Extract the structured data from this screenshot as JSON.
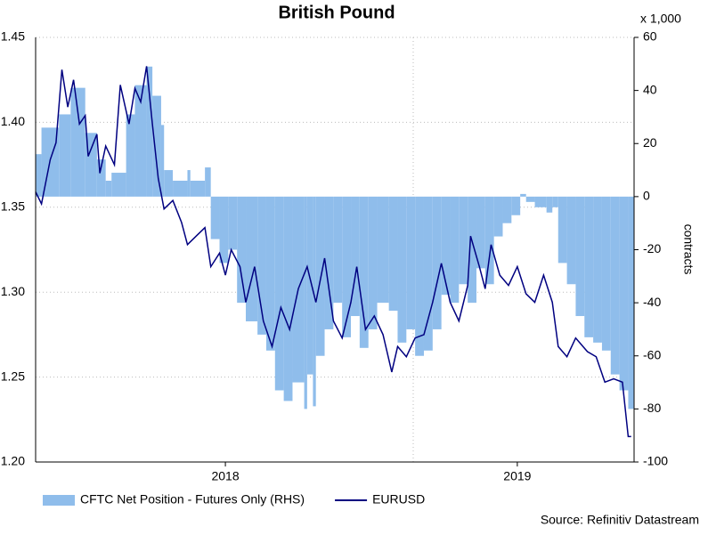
{
  "chart_data": {
    "type": "line",
    "title": "British Pound",
    "y2_label": "contracts",
    "y2_unit_label": "x 1,000",
    "source": "Source: Refinitiv Datastream",
    "xlim": [
      2017.35,
      2019.4
    ],
    "xticks": [
      2018,
      2019
    ],
    "ylim": [
      1.2,
      1.45
    ],
    "yticks": [
      {
        "value": 1.2,
        "label": "1.20"
      },
      1.25,
      {
        "value": 1.3,
        "label": "1.30"
      },
      1.35,
      {
        "value": 1.4,
        "label": "1.40"
      },
      1.45
    ],
    "y2lim": [
      -100,
      60
    ],
    "y2ticks": [
      -100,
      -80,
      -60,
      -40,
      -20,
      0,
      20,
      40,
      60
    ],
    "grid": true,
    "series": [
      {
        "name": "CFTC Net Position - Futures Only (RHS)",
        "type": "area",
        "axis": "y2",
        "color": "#8fbdeb",
        "x": [
          2017.35,
          2017.37,
          2017.43,
          2017.47,
          2017.52,
          2017.56,
          2017.59,
          2017.61,
          2017.66,
          2017.69,
          2017.73,
          2017.75,
          2017.78,
          2017.79,
          2017.82,
          2017.87,
          2017.88,
          2017.93,
          2017.95,
          2017.98,
          2018.01,
          2018.04,
          2018.07,
          2018.11,
          2018.14,
          2018.17,
          2018.2,
          2018.23,
          2018.27,
          2018.28,
          2018.3,
          2018.31,
          2018.34,
          2018.37,
          2018.4,
          2018.43,
          2018.46,
          2018.49,
          2018.52,
          2018.56,
          2018.59,
          2018.62,
          2018.65,
          2018.68,
          2018.71,
          2018.74,
          2018.77,
          2018.8,
          2018.83,
          2018.86,
          2018.89,
          2018.92,
          2018.95,
          2018.98,
          2019.01,
          2019.03,
          2019.06,
          2019.1,
          2019.12,
          2019.14,
          2019.17,
          2019.2,
          2019.23,
          2019.26,
          2019.29,
          2019.32,
          2019.35,
          2019.38
        ],
        "values": [
          16,
          26,
          31,
          41,
          24,
          14,
          6,
          9,
          31,
          42,
          49,
          38,
          27,
          10,
          6,
          10,
          6,
          11,
          -16,
          -25,
          -20,
          -40,
          -47,
          -52,
          -58,
          -73,
          -77,
          -70,
          -80,
          -67,
          -79,
          -60,
          -50,
          -40,
          -53,
          -45,
          -57,
          -50,
          -40,
          -43,
          -55,
          -50,
          -60,
          -58,
          -50,
          -37,
          -40,
          -33,
          -40,
          -27,
          -33,
          -15,
          -10,
          -7,
          1,
          -2,
          -4,
          -6,
          -4,
          -25,
          -33,
          -45,
          -53,
          -55,
          -58,
          -67,
          -73,
          -80
        ]
      },
      {
        "name": "EURUSD",
        "type": "line",
        "axis": "y",
        "color": "#000080",
        "x": [
          2017.35,
          2017.37,
          2017.4,
          2017.42,
          2017.44,
          2017.46,
          2017.48,
          2017.5,
          2017.52,
          2017.53,
          2017.56,
          2017.57,
          2017.59,
          2017.62,
          2017.64,
          2017.67,
          2017.69,
          2017.71,
          2017.73,
          2017.75,
          2017.77,
          2017.79,
          2017.82,
          2017.85,
          2017.87,
          2017.9,
          2017.93,
          2017.95,
          2017.98,
          2018.0,
          2018.02,
          2018.05,
          2018.07,
          2018.1,
          2018.13,
          2018.16,
          2018.19,
          2018.22,
          2018.25,
          2018.28,
          2018.31,
          2018.34,
          2018.37,
          2018.4,
          2018.43,
          2018.45,
          2018.48,
          2018.51,
          2018.54,
          2018.57,
          2018.59,
          2018.62,
          2018.65,
          2018.68,
          2018.71,
          2018.74,
          2018.77,
          2018.8,
          2018.83,
          2018.84,
          2018.87,
          2018.89,
          2018.91,
          2018.94,
          2018.97,
          2019.0,
          2019.03,
          2019.06,
          2019.09,
          2019.12,
          2019.14,
          2019.17,
          2019.2,
          2019.24,
          2019.27,
          2019.3,
          2019.33,
          2019.36,
          2019.38,
          2019.39
        ],
        "values": [
          1.359,
          1.352,
          1.378,
          1.388,
          1.431,
          1.409,
          1.425,
          1.399,
          1.404,
          1.38,
          1.393,
          1.37,
          1.386,
          1.375,
          1.422,
          1.399,
          1.42,
          1.412,
          1.433,
          1.399,
          1.367,
          1.349,
          1.354,
          1.341,
          1.328,
          1.333,
          1.338,
          1.315,
          1.323,
          1.31,
          1.325,
          1.315,
          1.294,
          1.315,
          1.283,
          1.268,
          1.291,
          1.278,
          1.302,
          1.315,
          1.294,
          1.32,
          1.283,
          1.273,
          1.294,
          1.315,
          1.278,
          1.286,
          1.275,
          1.253,
          1.268,
          1.262,
          1.273,
          1.275,
          1.294,
          1.317,
          1.294,
          1.283,
          1.304,
          1.333,
          1.315,
          1.302,
          1.328,
          1.31,
          1.304,
          1.315,
          1.299,
          1.294,
          1.31,
          1.294,
          1.268,
          1.262,
          1.273,
          1.265,
          1.262,
          1.247,
          1.249,
          1.247,
          1.215,
          1.215
        ]
      }
    ]
  }
}
